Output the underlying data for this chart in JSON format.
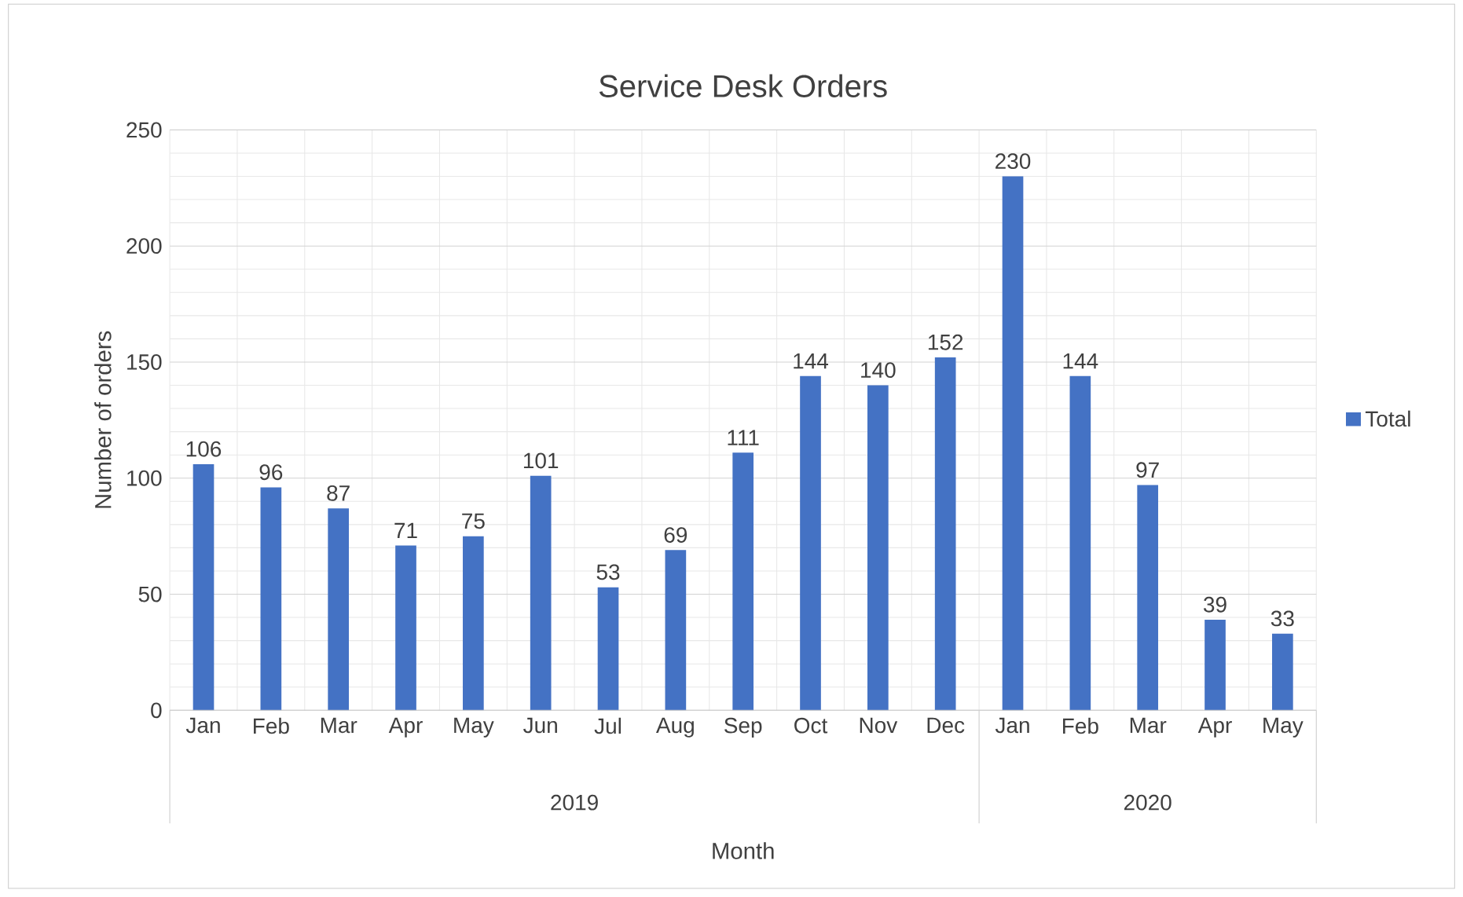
{
  "chart_data": {
    "type": "bar",
    "title": "Service Desk Orders",
    "xlabel": "Month",
    "ylabel": "Number of orders",
    "categories": [
      "Jan",
      "Feb",
      "Mar",
      "Apr",
      "May",
      "Jun",
      "Jul",
      "Aug",
      "Sep",
      "Oct",
      "Nov",
      "Dec",
      "Jan",
      "Feb",
      "Mar",
      "Apr",
      "May"
    ],
    "series": [
      {
        "name": "Total",
        "color": "#4472c4",
        "values": [
          106,
          96,
          87,
          71,
          75,
          101,
          53,
          69,
          111,
          144,
          140,
          152,
          230,
          144,
          97,
          39,
          33
        ]
      }
    ],
    "ylim": [
      0,
      250
    ],
    "yticks": [
      0,
      50,
      100,
      150,
      200,
      250
    ],
    "annotations": [
      "2019",
      "2020"
    ],
    "grid": true,
    "legend": "right",
    "data_labels": true
  }
}
